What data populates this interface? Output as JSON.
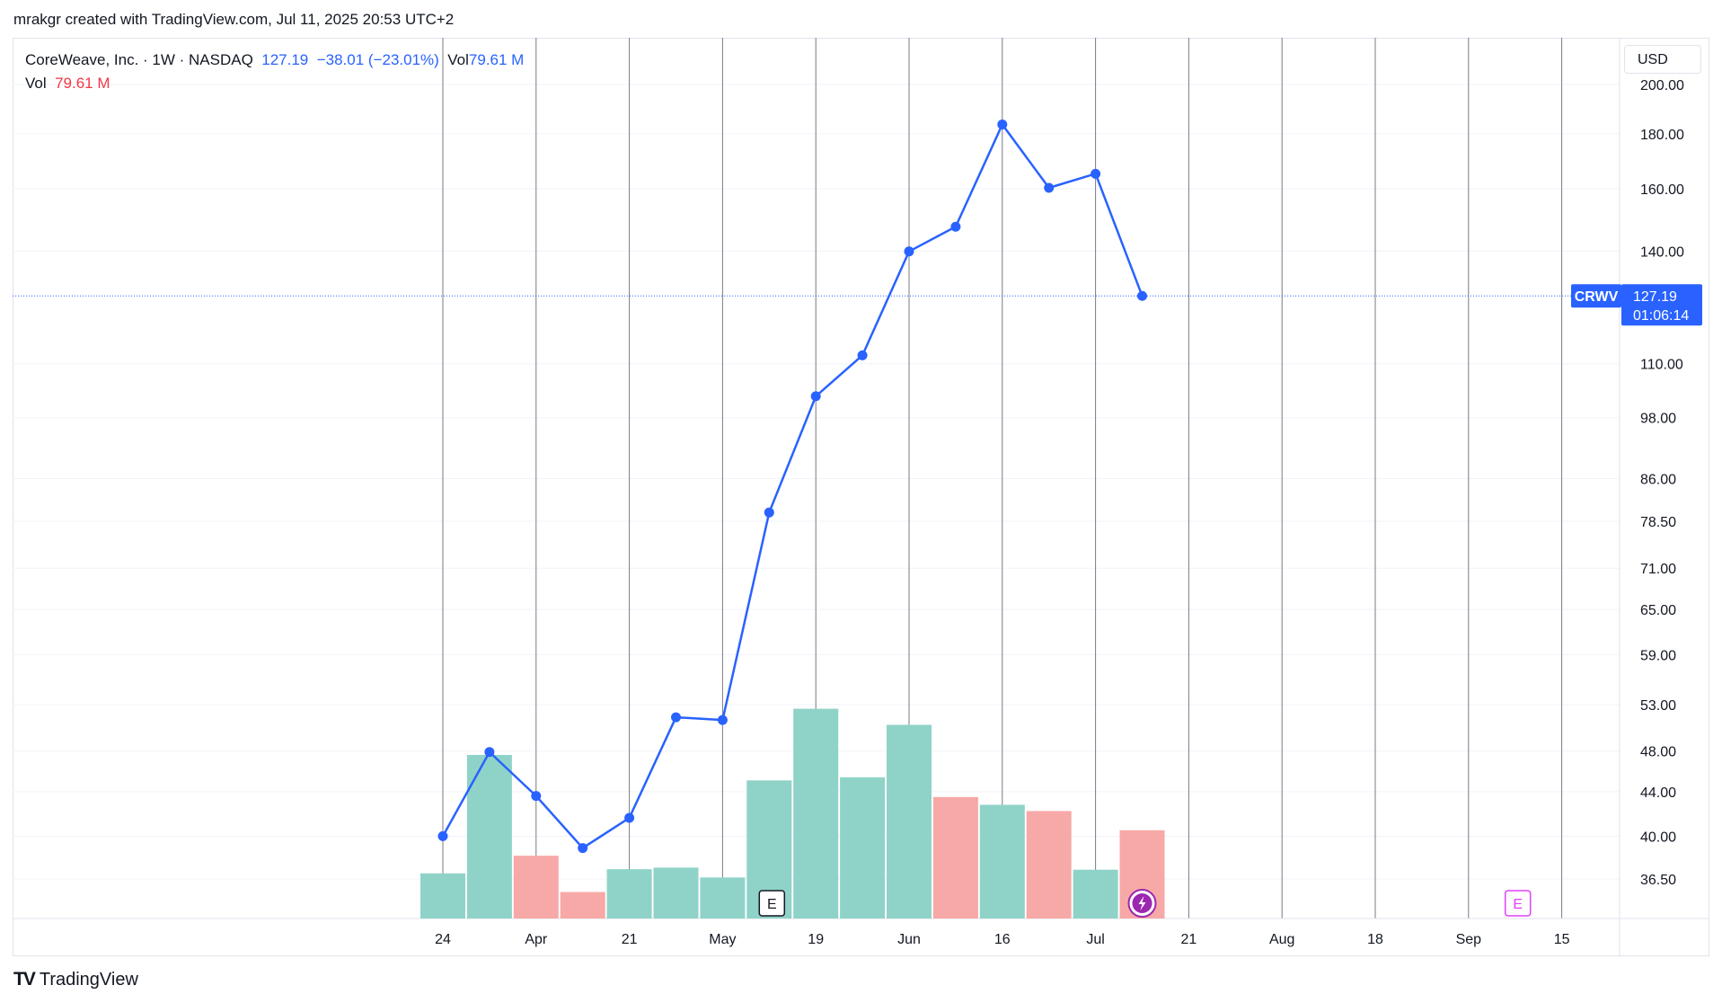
{
  "header": {
    "attribution": "mrakgr created with TradingView.com, Jul 11, 2025 20:53 UTC+2"
  },
  "legend": {
    "symbol_line": "CoreWeave, Inc. · 1W · NASDAQ",
    "price": "127.19",
    "change": "−38.01 (−23.01%)",
    "vol_inline_label": "Vol",
    "vol_inline_value": "79.61 M",
    "vol_label": "Vol",
    "vol_value": "79.61 M"
  },
  "currency": "USD",
  "ticker_tag": "CRWV",
  "last_price_tag": {
    "price": "127.19",
    "countdown": "01:06:14"
  },
  "events": {
    "earnings_marker": "E",
    "future_earnings_marker": "E"
  },
  "brand": {
    "logo": "TV",
    "name": "TradingView"
  },
  "colors": {
    "line": "#2962ff",
    "volume_up": "#8fd3c8",
    "volume_down": "#f7a9a7",
    "grid_vertical": "#787b86",
    "earnings_future": "#e040fb",
    "dividend_marker": "#9c27b0"
  },
  "chart_data": {
    "type": "line",
    "title": "CoreWeave, Inc. · 1W · NASDAQ",
    "y_scale": "log",
    "y_ticks": [
      36.5,
      40,
      44,
      48,
      53,
      59,
      65,
      71,
      78.5,
      86,
      98,
      110,
      140,
      160,
      180,
      200
    ],
    "y_tick_labels": [
      "36.50",
      "40.00",
      "44.00",
      "48.00",
      "53.00",
      "59.00",
      "65.00",
      "71.00",
      "78.50",
      "86.00",
      "98.00",
      "110.00",
      "140.00",
      "160.00",
      "180.00",
      "200.00"
    ],
    "x_tick_labels": [
      "24",
      "Apr",
      "21",
      "May",
      "19",
      "Jun",
      "16",
      "Jul",
      "21",
      "Aug",
      "18",
      "Sep",
      "15"
    ],
    "x_tick_weeks": [
      1,
      3,
      5,
      7,
      9,
      11,
      13,
      15,
      17,
      19,
      21,
      23,
      25
    ],
    "series": [
      {
        "values": [
          40.0,
          47.9,
          43.6,
          39.0,
          41.6,
          51.6,
          51.3,
          80.0,
          102.6,
          112.0,
          139.9,
          147.5,
          183.6,
          160.3,
          165.2,
          127.19
        ],
        "weeks": [
          1,
          2,
          3,
          4,
          5,
          6,
          7,
          8,
          9,
          10,
          11,
          12,
          13,
          14,
          15,
          16
        ]
      }
    ],
    "volume": {
      "values": [
        8.7,
        31.5,
        12.1,
        5.1,
        9.5,
        9.8,
        7.9,
        26.6,
        40.4,
        27.2,
        37.3,
        23.4,
        21.9,
        20.7,
        9.4,
        17.0
      ],
      "direction": [
        "up",
        "up",
        "down",
        "down",
        "up",
        "up",
        "up",
        "up",
        "up",
        "up",
        "up",
        "down",
        "up",
        "down",
        "up",
        "down"
      ]
    },
    "last_value": 127.19,
    "earnings_weeks": [
      8,
      24
    ],
    "dividend_weeks": [
      16
    ]
  }
}
